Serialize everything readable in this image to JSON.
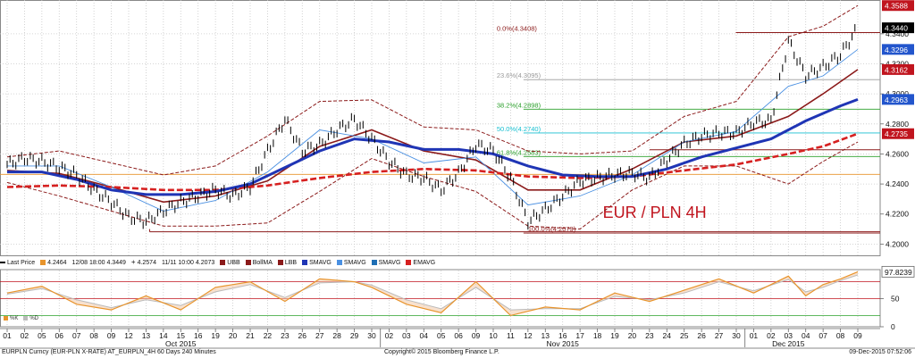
{
  "colors": {
    "price": "#000000",
    "upper_band": "#8b1a1a",
    "lower_band": "#8b1a1a",
    "mid_band": "#8b1a1a",
    "sma_thick": "#1f35b5",
    "sma_thin": "#4a90e2",
    "ema_dashed": "#d62020",
    "stoch_k": "#e8942c",
    "stoch_d": "#bbbbbb",
    "fib_0": "#8b1a1a",
    "fib_236": "#999999",
    "fib_382": "#2ca02c",
    "fib_50": "#17bfd0",
    "fib_618": "#2ca02c",
    "fib_100": "#8b1a1a",
    "support": "#8b1a1a",
    "orange_level": "#e8942c",
    "label_bg_black": "#000000",
    "label_bg_red": "#c0141e",
    "label_bg_blue": "#2255cc",
    "label_bg_white": "#ffffff"
  },
  "legend": {
    "items": [
      {
        "label": "Last Price",
        "icon": "line-icon",
        "color": "#000000"
      },
      {
        "label": "4.2464",
        "icon": "square-icon",
        "color": "#e8942c"
      },
      {
        "label": "12/08 18:00 4.3449",
        "icon": "",
        "color": ""
      },
      {
        "label": "4.2574",
        "icon": "plus-icon",
        "color": "#000000"
      },
      {
        "label": "11/11 10:00 4.2073",
        "icon": "",
        "color": ""
      },
      {
        "label": "UBB",
        "icon": "square-icon",
        "color": "#8b1a1a"
      },
      {
        "label": "BollMA",
        "icon": "square-icon",
        "color": "#8b1a1a"
      },
      {
        "label": "LBB",
        "icon": "square-icon",
        "color": "#8b1a1a"
      },
      {
        "label": "SMAVG",
        "icon": "square-icon",
        "color": "#1f35b5"
      },
      {
        "label": "SMAVG",
        "icon": "square-icon",
        "color": "#4a90e2"
      },
      {
        "label": "SMAVG",
        "icon": "square-icon",
        "color": "#1f6fb5"
      },
      {
        "label": "EMAVG",
        "icon": "square-icon",
        "color": "#d62020"
      }
    ]
  },
  "osc_legend": {
    "k": "%K",
    "d": "%D"
  },
  "footer": {
    "left": "EURPLN Curncy (EUR-PLN X-RATE) AT_EURPLN_4H 60 Days 240 Minutes",
    "center": "Copyright© 2015 Bloomberg Finance L.P.",
    "right": "09-Dec-2015 07:52:06"
  },
  "chart_data": {
    "type": "line",
    "title": "EUR / PLN 4H",
    "y_ticks": [
      4.2,
      4.22,
      4.24,
      4.26,
      4.28,
      4.3,
      4.32,
      4.34
    ],
    "y_tick_labels": [
      "4.2000",
      "4.2200",
      "4.2400",
      "4.2600",
      "4.2800",
      "4.3000",
      "4.3200",
      "4.3400"
    ],
    "ylim": [
      4.1925,
      4.3625
    ],
    "osc_ticks": [
      0,
      50
    ],
    "osc_ylim": [
      0,
      100
    ],
    "x_day_labels": [
      "01",
      "02",
      "05",
      "06",
      "07",
      "08",
      "09",
      "12",
      "13",
      "14",
      "15",
      "16",
      "19",
      "20",
      "21",
      "22",
      "23",
      "26",
      "27",
      "28",
      "29",
      "30",
      "02",
      "03",
      "04",
      "05",
      "06",
      "09",
      "10",
      "11",
      "12",
      "13",
      "16",
      "17",
      "18",
      "19",
      "20",
      "23",
      "24",
      "25",
      "26",
      "27",
      "30",
      "01",
      "02",
      "03",
      "04",
      "07",
      "08",
      "09"
    ],
    "month_labels": [
      {
        "label": "Oct 2015",
        "at_day_index": 10
      },
      {
        "label": "Nov 2015",
        "at_day_index": 32
      },
      {
        "label": "Dec 2015",
        "at_day_index": 45
      }
    ],
    "price_tags": [
      {
        "value": "4.3588",
        "y": 4.3588,
        "style": "red"
      },
      {
        "value": "4.3440",
        "y": 4.344,
        "style": "black"
      },
      {
        "value": "4.3296",
        "y": 4.3296,
        "style": "blue"
      },
      {
        "value": "4.3162",
        "y": 4.3162,
        "style": "red"
      },
      {
        "value": "4.2963",
        "y": 4.2963,
        "style": "blue"
      },
      {
        "value": "4.2735",
        "y": 4.2735,
        "style": "red"
      },
      {
        "value": "97.8239",
        "osc": 97.8239,
        "style": "white"
      }
    ],
    "fib_levels": [
      {
        "label": "0.0%(4.3408)",
        "value": 4.3408,
        "color_key": "fib_0"
      },
      {
        "label": "23.6%(4.3095)",
        "value": 4.3095,
        "color_key": "fib_236"
      },
      {
        "label": "38.2%(4.2898)",
        "value": 4.2898,
        "color_key": "fib_382"
      },
      {
        "label": "50.0%(4.2740)",
        "value": 4.274,
        "color_key": "fib_50"
      },
      {
        "label": "61.8%(4.2583)",
        "value": 4.2583,
        "color_key": "fib_618"
      },
      {
        "label": "100.0%(4.2073)",
        "value": 4.2073,
        "color_key": "fib_100"
      }
    ],
    "support_level": 4.2082,
    "orange_level": 4.2464,
    "resistance_level": 4.2628,
    "series": [
      {
        "name": "Last Price",
        "x": [
          0,
          1,
          2,
          3,
          4,
          5,
          6,
          7,
          8,
          9,
          10,
          11,
          12,
          13,
          14,
          15,
          16,
          17,
          18,
          19,
          20,
          21,
          22,
          23,
          24,
          25,
          26,
          27,
          28,
          29,
          30,
          31,
          32,
          33,
          34,
          35,
          36,
          37,
          38,
          39,
          40,
          41,
          42,
          43,
          44,
          45,
          46,
          47,
          48,
          49
        ],
        "values": [
          4.253,
          4.257,
          4.255,
          4.251,
          4.246,
          4.236,
          4.228,
          4.218,
          4.215,
          4.222,
          4.228,
          4.232,
          4.236,
          4.232,
          4.238,
          4.262,
          4.283,
          4.262,
          4.266,
          4.276,
          4.283,
          4.27,
          4.255,
          4.246,
          4.244,
          4.236,
          4.247,
          4.266,
          4.262,
          4.244,
          4.215,
          4.223,
          4.232,
          4.242,
          4.244,
          4.246,
          4.247,
          4.244,
          4.256,
          4.267,
          4.272,
          4.274,
          4.274,
          4.281,
          4.282,
          4.335,
          4.312,
          4.318,
          4.326,
          4.344
        ]
      },
      {
        "name": "SMAVG",
        "x": [
          0,
          2,
          4,
          6,
          8,
          10,
          12,
          14,
          16,
          18,
          20,
          22,
          24,
          26,
          28,
          30,
          32,
          34,
          36,
          38,
          40,
          42,
          44,
          46,
          48,
          49
        ],
        "values": [
          4.248,
          4.248,
          4.243,
          4.236,
          4.233,
          4.233,
          4.235,
          4.24,
          4.251,
          4.262,
          4.27,
          4.268,
          4.263,
          4.263,
          4.26,
          4.252,
          4.246,
          4.245,
          4.245,
          4.25,
          4.258,
          4.264,
          4.27,
          4.282,
          4.292,
          4.2963
        ]
      },
      {
        "name": "EMAVG",
        "x": [
          0,
          3,
          6,
          9,
          12,
          15,
          18,
          21,
          24,
          27,
          30,
          33,
          36,
          39,
          42,
          45,
          47,
          49
        ],
        "values": [
          4.238,
          4.239,
          4.238,
          4.236,
          4.236,
          4.239,
          4.244,
          4.248,
          4.25,
          4.249,
          4.245,
          4.244,
          4.245,
          4.249,
          4.253,
          4.26,
          4.265,
          4.2735
        ]
      },
      {
        "name": "BollMA",
        "x": [
          0,
          3,
          6,
          9,
          12,
          15,
          18,
          21,
          24,
          27,
          30,
          33,
          36,
          39,
          42,
          45,
          47,
          49
        ],
        "values": [
          4.249,
          4.247,
          4.238,
          4.228,
          4.232,
          4.242,
          4.265,
          4.276,
          4.262,
          4.256,
          4.236,
          4.236,
          4.25,
          4.268,
          4.272,
          4.285,
          4.3,
          4.3162
        ]
      },
      {
        "name": "UBB",
        "x": [
          0,
          3,
          6,
          9,
          12,
          15,
          18,
          21,
          24,
          27,
          30,
          33,
          36,
          39,
          42,
          45,
          47,
          49
        ],
        "values": [
          4.258,
          4.262,
          4.254,
          4.246,
          4.252,
          4.272,
          4.295,
          4.296,
          4.278,
          4.276,
          4.262,
          4.26,
          4.262,
          4.285,
          4.295,
          4.338,
          4.345,
          4.3588
        ]
      },
      {
        "name": "LBB",
        "x": [
          0,
          3,
          6,
          9,
          12,
          15,
          18,
          21,
          24,
          27,
          30,
          33,
          36,
          39,
          42,
          45,
          47,
          49
        ],
        "values": [
          4.241,
          4.232,
          4.222,
          4.212,
          4.212,
          4.214,
          4.235,
          4.257,
          4.245,
          4.235,
          4.212,
          4.21,
          4.236,
          4.252,
          4.252,
          4.24,
          4.255,
          4.268
        ]
      },
      {
        "name": "SMAVG",
        "x": [
          0,
          3,
          6,
          9,
          12,
          15,
          18,
          21,
          24,
          27,
          30,
          33,
          36,
          39,
          42,
          45,
          47,
          49
        ],
        "values": [
          4.252,
          4.252,
          4.238,
          4.222,
          4.229,
          4.248,
          4.276,
          4.27,
          4.254,
          4.258,
          4.226,
          4.232,
          4.246,
          4.268,
          4.275,
          4.305,
          4.312,
          4.3296
        ]
      },
      {
        "name": "%K",
        "x": [
          0,
          2,
          4,
          6,
          8,
          10,
          12,
          14,
          16,
          18,
          20,
          21,
          23,
          25,
          27,
          29,
          31,
          33,
          35,
          37,
          39,
          41,
          43,
          45,
          46,
          47,
          48,
          49
        ],
        "values": [
          60,
          72,
          40,
          30,
          55,
          30,
          70,
          80,
          45,
          85,
          80,
          70,
          40,
          25,
          80,
          20,
          35,
          30,
          60,
          45,
          65,
          85,
          60,
          90,
          55,
          75,
          85,
          97.82
        ]
      },
      {
        "name": "%D",
        "x": [
          0,
          2,
          4,
          6,
          8,
          10,
          12,
          14,
          16,
          18,
          20,
          21,
          23,
          25,
          27,
          29,
          31,
          33,
          35,
          37,
          39,
          41,
          43,
          45,
          46,
          47,
          48,
          49
        ],
        "values": [
          58,
          68,
          48,
          34,
          48,
          38,
          62,
          75,
          52,
          78,
          80,
          74,
          48,
          32,
          70,
          30,
          32,
          32,
          54,
          48,
          60,
          80,
          64,
          84,
          62,
          70,
          82,
          92
        ]
      }
    ]
  }
}
